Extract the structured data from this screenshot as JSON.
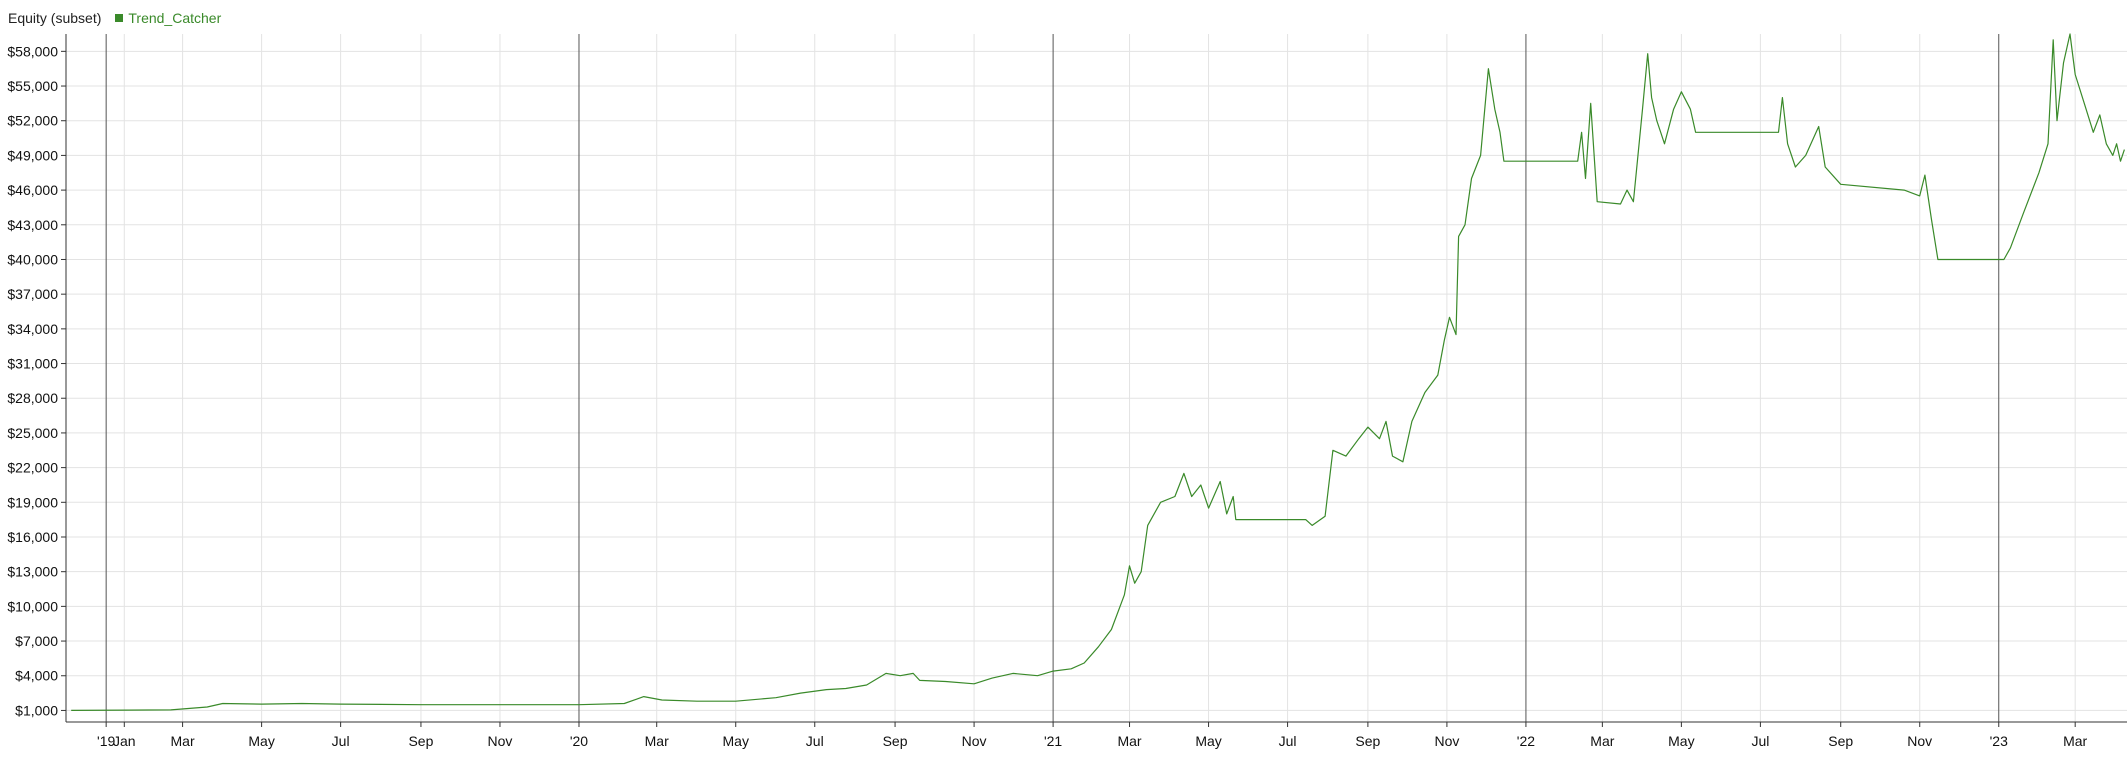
{
  "header": {
    "title": "Equity (subset)",
    "legend_label": "Trend_Catcher"
  },
  "colors": {
    "series": "#3a8a2a",
    "grid": "#e3e3e3",
    "year_line": "#555555",
    "axis": "#333333"
  },
  "chart_data": {
    "type": "line",
    "title": "Equity (subset)",
    "grid": true,
    "legend": "top-left",
    "xlim": [
      "2018-12-01",
      "2023-04-10"
    ],
    "ylim": [
      0,
      59500
    ],
    "y_ticks": [
      1000,
      4000,
      7000,
      10000,
      13000,
      16000,
      19000,
      22000,
      25000,
      28000,
      31000,
      34000,
      37000,
      40000,
      43000,
      46000,
      49000,
      52000,
      55000,
      58000
    ],
    "y_tick_labels": [
      "$1,000",
      "$4,000",
      "$7,000",
      "$10,000",
      "$13,000",
      "$16,000",
      "$19,000",
      "$22,000",
      "$25,000",
      "$28,000",
      "$31,000",
      "$34,000",
      "$37,000",
      "$40,000",
      "$43,000",
      "$46,000",
      "$49,000",
      "$52,000",
      "$55,000",
      "$58,000"
    ],
    "x_ticks": [
      {
        "date": "2019-01-01",
        "label": "'19",
        "year": true
      },
      {
        "date": "2019-01-15",
        "label": "Jan",
        "year": false
      },
      {
        "date": "2019-03-01",
        "label": "Mar",
        "year": false
      },
      {
        "date": "2019-05-01",
        "label": "May",
        "year": false
      },
      {
        "date": "2019-07-01",
        "label": "Jul",
        "year": false
      },
      {
        "date": "2019-09-01",
        "label": "Sep",
        "year": false
      },
      {
        "date": "2019-11-01",
        "label": "Nov",
        "year": false
      },
      {
        "date": "2020-01-01",
        "label": "'20",
        "year": true
      },
      {
        "date": "2020-03-01",
        "label": "Mar",
        "year": false
      },
      {
        "date": "2020-05-01",
        "label": "May",
        "year": false
      },
      {
        "date": "2020-07-01",
        "label": "Jul",
        "year": false
      },
      {
        "date": "2020-09-01",
        "label": "Sep",
        "year": false
      },
      {
        "date": "2020-11-01",
        "label": "Nov",
        "year": false
      },
      {
        "date": "2021-01-01",
        "label": "'21",
        "year": true
      },
      {
        "date": "2021-03-01",
        "label": "Mar",
        "year": false
      },
      {
        "date": "2021-05-01",
        "label": "May",
        "year": false
      },
      {
        "date": "2021-07-01",
        "label": "Jul",
        "year": false
      },
      {
        "date": "2021-09-01",
        "label": "Sep",
        "year": false
      },
      {
        "date": "2021-11-01",
        "label": "Nov",
        "year": false
      },
      {
        "date": "2022-01-01",
        "label": "'22",
        "year": true
      },
      {
        "date": "2022-03-01",
        "label": "Mar",
        "year": false
      },
      {
        "date": "2022-05-01",
        "label": "May",
        "year": false
      },
      {
        "date": "2022-07-01",
        "label": "Jul",
        "year": false
      },
      {
        "date": "2022-09-01",
        "label": "Sep",
        "year": false
      },
      {
        "date": "2022-11-01",
        "label": "Nov",
        "year": false
      },
      {
        "date": "2023-01-01",
        "label": "'23",
        "year": true
      },
      {
        "date": "2023-03-01",
        "label": "Mar",
        "year": false
      }
    ],
    "series": [
      {
        "name": "Trend_Catcher",
        "points": [
          [
            "2018-12-05",
            1000
          ],
          [
            "2019-02-20",
            1050
          ],
          [
            "2019-03-20",
            1300
          ],
          [
            "2019-04-01",
            1600
          ],
          [
            "2019-05-01",
            1550
          ],
          [
            "2019-06-01",
            1600
          ],
          [
            "2019-07-01",
            1550
          ],
          [
            "2019-09-01",
            1500
          ],
          [
            "2019-11-01",
            1500
          ],
          [
            "2020-01-01",
            1500
          ],
          [
            "2020-02-05",
            1600
          ],
          [
            "2020-02-20",
            2200
          ],
          [
            "2020-03-05",
            1900
          ],
          [
            "2020-04-01",
            1800
          ],
          [
            "2020-05-01",
            1800
          ],
          [
            "2020-06-01",
            2100
          ],
          [
            "2020-06-20",
            2500
          ],
          [
            "2020-07-10",
            2800
          ],
          [
            "2020-07-25",
            2900
          ],
          [
            "2020-08-10",
            3200
          ],
          [
            "2020-08-25",
            4200
          ],
          [
            "2020-09-05",
            4000
          ],
          [
            "2020-09-15",
            4200
          ],
          [
            "2020-09-20",
            3600
          ],
          [
            "2020-10-10",
            3500
          ],
          [
            "2020-11-01",
            3300
          ],
          [
            "2020-11-15",
            3800
          ],
          [
            "2020-12-01",
            4200
          ],
          [
            "2020-12-20",
            4000
          ],
          [
            "2021-01-01",
            4400
          ],
          [
            "2021-01-15",
            4600
          ],
          [
            "2021-01-25",
            5100
          ],
          [
            "2021-02-05",
            6500
          ],
          [
            "2021-02-15",
            8000
          ],
          [
            "2021-02-25",
            11000
          ],
          [
            "2021-03-01",
            13500
          ],
          [
            "2021-03-05",
            12000
          ],
          [
            "2021-03-10",
            13000
          ],
          [
            "2021-03-15",
            17000
          ],
          [
            "2021-03-25",
            19000
          ],
          [
            "2021-04-05",
            19500
          ],
          [
            "2021-04-12",
            21500
          ],
          [
            "2021-04-18",
            19500
          ],
          [
            "2021-04-25",
            20500
          ],
          [
            "2021-05-01",
            18500
          ],
          [
            "2021-05-10",
            20800
          ],
          [
            "2021-05-15",
            18000
          ],
          [
            "2021-05-20",
            19500
          ],
          [
            "2021-05-22",
            17500
          ],
          [
            "2021-06-01",
            17500
          ],
          [
            "2021-07-15",
            17500
          ],
          [
            "2021-07-20",
            17000
          ],
          [
            "2021-07-30",
            17800
          ],
          [
            "2021-08-05",
            23500
          ],
          [
            "2021-08-15",
            23000
          ],
          [
            "2021-08-25",
            24500
          ],
          [
            "2021-09-01",
            25500
          ],
          [
            "2021-09-10",
            24500
          ],
          [
            "2021-09-15",
            26000
          ],
          [
            "2021-09-20",
            23000
          ],
          [
            "2021-09-28",
            22500
          ],
          [
            "2021-10-05",
            26000
          ],
          [
            "2021-10-15",
            28500
          ],
          [
            "2021-10-25",
            30000
          ],
          [
            "2021-10-30",
            33000
          ],
          [
            "2021-11-03",
            35000
          ],
          [
            "2021-11-08",
            33500
          ],
          [
            "2021-11-10",
            42000
          ],
          [
            "2021-11-15",
            43000
          ],
          [
            "2021-11-20",
            47000
          ],
          [
            "2021-11-27",
            49000
          ],
          [
            "2021-12-03",
            56500
          ],
          [
            "2021-12-08",
            53000
          ],
          [
            "2021-12-12",
            51000
          ],
          [
            "2021-12-15",
            48500
          ],
          [
            "2022-02-10",
            48500
          ],
          [
            "2022-02-13",
            51000
          ],
          [
            "2022-02-16",
            47000
          ],
          [
            "2022-02-20",
            53500
          ],
          [
            "2022-02-25",
            45000
          ],
          [
            "2022-03-15",
            44800
          ],
          [
            "2022-03-20",
            46000
          ],
          [
            "2022-03-25",
            45000
          ],
          [
            "2022-04-01",
            53000
          ],
          [
            "2022-04-05",
            57800
          ],
          [
            "2022-04-08",
            54000
          ],
          [
            "2022-04-12",
            52000
          ],
          [
            "2022-04-15",
            51000
          ],
          [
            "2022-04-18",
            50000
          ],
          [
            "2022-04-25",
            53000
          ],
          [
            "2022-05-01",
            54500
          ],
          [
            "2022-05-08",
            53000
          ],
          [
            "2022-05-12",
            51000
          ],
          [
            "2022-06-01",
            51000
          ],
          [
            "2022-07-15",
            51000
          ],
          [
            "2022-07-18",
            54000
          ],
          [
            "2022-07-22",
            50000
          ],
          [
            "2022-07-28",
            48000
          ],
          [
            "2022-08-05",
            49000
          ],
          [
            "2022-08-15",
            51500
          ],
          [
            "2022-08-20",
            48000
          ],
          [
            "2022-09-01",
            46500
          ],
          [
            "2022-10-20",
            46000
          ],
          [
            "2022-11-01",
            45500
          ],
          [
            "2022-11-05",
            47300
          ],
          [
            "2022-11-10",
            43500
          ],
          [
            "2022-11-15",
            40000
          ],
          [
            "2023-01-05",
            40000
          ],
          [
            "2023-01-10",
            41000
          ],
          [
            "2023-01-20",
            44000
          ],
          [
            "2023-02-01",
            47500
          ],
          [
            "2023-02-08",
            50000
          ],
          [
            "2023-02-12",
            59000
          ],
          [
            "2023-02-15",
            52000
          ],
          [
            "2023-02-20",
            57000
          ],
          [
            "2023-02-25",
            59500
          ],
          [
            "2023-03-01",
            56000
          ],
          [
            "2023-03-08",
            53500
          ],
          [
            "2023-03-15",
            51000
          ],
          [
            "2023-03-20",
            52500
          ],
          [
            "2023-03-25",
            50000
          ],
          [
            "2023-03-30",
            49000
          ],
          [
            "2023-04-02",
            50000
          ],
          [
            "2023-04-05",
            48500
          ],
          [
            "2023-04-08",
            49500
          ]
        ]
      }
    ]
  }
}
